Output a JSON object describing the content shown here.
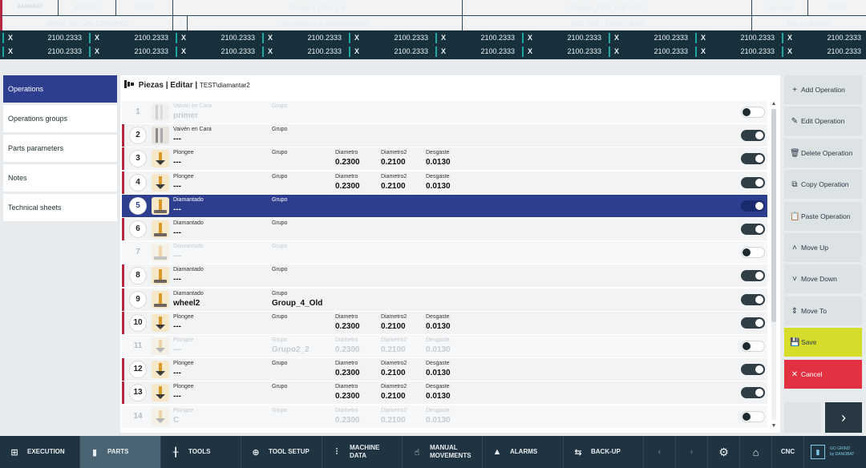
{
  "status": {
    "brand": "DANOBAT",
    "state": "READY",
    "mode": "AUTO",
    "group_part": "Group 3 | Part 1.3",
    "program": "Angular_CBN_Left - P.01",
    "user": "Operator",
    "time": "10:37",
    "channel_name": "NAME ACTUAL CHANNEL",
    "info_icon": "i",
    "info_text": "Information of actual channel",
    "iso": "ISO: G05 - XXXX - 3000",
    "serial": "SN: HJS-6983"
  },
  "axes": {
    "label": "X",
    "row1": [
      "2100.2333",
      "2100.2333",
      "2100.2333",
      "2100.2333",
      "2100.2333",
      "2100.2333",
      "2100.2333",
      "2100.2333",
      "2100.2333",
      "2100.2333"
    ],
    "row2": [
      "2100.2333",
      "2100.2333",
      "2100.2333",
      "2100.2333",
      "2100.2333",
      "2100.2333",
      "2100.2333",
      "2100.2333",
      "2100.2333",
      "2100.2333"
    ]
  },
  "left_menu": [
    {
      "label": "Operations",
      "active": true
    },
    {
      "label": "Operations groups"
    },
    {
      "label": "Parts parameters"
    },
    {
      "label": "Notes"
    },
    {
      "label": "Technical sheets"
    }
  ],
  "breadcrumb": {
    "title": "Piezas | Editar |",
    "path": "TEST\\diamantar2"
  },
  "operations": [
    {
      "num": "1",
      "type": "Vaivén en Cara",
      "name": "primer",
      "group_label": "Grupo",
      "group": "",
      "thumb": "vaiven",
      "state": "disabled",
      "toggle": false
    },
    {
      "num": "2",
      "type": "Vaivén en Cara",
      "name": "---",
      "group_label": "Grupo",
      "group": "",
      "thumb": "vaiven",
      "state": "normal",
      "toggle": true
    },
    {
      "num": "3",
      "type": "Plongee",
      "name": "---",
      "group_label": "Grupo",
      "group": "",
      "thumb": "plongee",
      "state": "normal",
      "toggle": true,
      "d1_label": "Diametro",
      "d1": "0.2300",
      "d2_label": "Diametro2",
      "d2": "0.2100",
      "w_label": "Desgaste",
      "w": "0.0130"
    },
    {
      "num": "4",
      "type": "Plongee",
      "name": "---",
      "group_label": "Grupo",
      "group": "",
      "thumb": "plongee",
      "state": "normal",
      "toggle": true,
      "d1_label": "Diametro",
      "d1": "0.2300",
      "d2_label": "Diametro2",
      "d2": "0.2100",
      "w_label": "Desgaste",
      "w": "0.0130"
    },
    {
      "num": "5",
      "type": "Diamantado",
      "name": "---",
      "group_label": "Grupo",
      "group": "",
      "thumb": "diamantado",
      "state": "selected",
      "toggle": true
    },
    {
      "num": "6",
      "type": "Diamantado",
      "name": "---",
      "group_label": "Grupo",
      "group": "",
      "thumb": "diamantado",
      "state": "normal",
      "toggle": true
    },
    {
      "num": "7",
      "type": "Diamantado",
      "name": "---",
      "group_label": "Grupo",
      "group": "",
      "thumb": "diamantado",
      "state": "disabled",
      "toggle": false
    },
    {
      "num": "8",
      "type": "Diamantado",
      "name": "---",
      "group_label": "Grupo",
      "group": "",
      "thumb": "diamantado",
      "state": "normal",
      "toggle": true
    },
    {
      "num": "9",
      "type": "Diamantado",
      "name": "wheel2",
      "group_label": "Grupo",
      "group": "Group_4_Old",
      "thumb": "diamantado",
      "state": "normal",
      "toggle": true
    },
    {
      "num": "10",
      "type": "Plongee",
      "name": "---",
      "group_label": "Grupo",
      "group": "",
      "thumb": "plongee",
      "state": "normal",
      "toggle": true,
      "d1_label": "Diametro",
      "d1": "0.2300",
      "d2_label": "Diametro2",
      "d2": "0.2100",
      "w_label": "Desgaste",
      "w": "0.0130"
    },
    {
      "num": "11",
      "type": "Plongee",
      "name": "---",
      "group_label": "Grupo",
      "group": "Grupo2_2",
      "thumb": "plongee",
      "state": "disabled",
      "toggle": false,
      "d1_label": "Diametro",
      "d1": "0.2300",
      "d2_label": "Diametro2",
      "d2": "0.2100",
      "w_label": "Desgaste",
      "w": "0.0130"
    },
    {
      "num": "12",
      "type": "Plongee",
      "name": "---",
      "group_label": "Grupo",
      "group": "",
      "thumb": "plongee",
      "state": "normal",
      "toggle": true,
      "d1_label": "Diametro",
      "d1": "0.2300",
      "d2_label": "Diametro2",
      "d2": "0.2100",
      "w_label": "Desgaste",
      "w": "0.0130"
    },
    {
      "num": "13",
      "type": "Plongee",
      "name": "---",
      "group_label": "Grupo",
      "group": "",
      "thumb": "plongee",
      "state": "normal",
      "toggle": true,
      "d1_label": "Diametro",
      "d1": "0.2300",
      "d2_label": "Diametro2",
      "d2": "0.2100",
      "w_label": "Desgaste",
      "w": "0.0130"
    },
    {
      "num": "14",
      "type": "Plongee",
      "name": "C",
      "group_label": "Grupo",
      "group": "",
      "thumb": "plongee",
      "state": "disabled",
      "toggle": false,
      "d1_label": "Diametro",
      "d1": "0.2300",
      "d2_label": "Diametro2",
      "d2": "0.2100",
      "w_label": "Desgaste",
      "w": "0.0130"
    }
  ],
  "actions": [
    {
      "label": "Add Operation",
      "icon": "plus-icon",
      "glyph": "+"
    },
    {
      "label": "Edit Operation",
      "icon": "pencil-icon",
      "glyph": "✎"
    },
    {
      "label": "Delete Operation",
      "icon": "trash-icon",
      "glyph": "🗑"
    },
    {
      "label": "Copy Operation",
      "icon": "copy-icon",
      "glyph": "⧉"
    },
    {
      "label": "Paste Operation",
      "icon": "paste-icon",
      "glyph": "📋"
    },
    {
      "label": "Move Up",
      "icon": "chevron-up-icon",
      "glyph": "˄"
    },
    {
      "label": "Move Down",
      "icon": "chevron-down-icon",
      "glyph": "˅"
    },
    {
      "label": "Move To",
      "icon": "move-to-icon",
      "glyph": "⇕"
    },
    {
      "label": "Save",
      "icon": "save-icon",
      "glyph": "💾",
      "kind": "save"
    },
    {
      "label": "Cancel",
      "icon": "close-icon",
      "glyph": "✕",
      "kind": "cancel"
    }
  ],
  "nav": {
    "next_glyph": "›"
  },
  "bottom": {
    "execution": "EXECUTION",
    "parts": "PARTS",
    "tools": "TOOLS",
    "tool_setup": "TOOL SETUP",
    "machine_data": "MACHINE DATA",
    "manual_movements": "MANUAL MOVEMENTS",
    "alarms": "ALARMS",
    "backup": "BACK-UP",
    "cnc": "CNC",
    "go_grind": "GO GRIND",
    "by_danobat": "by DANOBAT"
  },
  "colors": {
    "selected": "#2d3e8f",
    "row_marker": "#b32940",
    "save": "#d5dd2a",
    "cancel": "#e23140",
    "bars": "#1f3340"
  }
}
